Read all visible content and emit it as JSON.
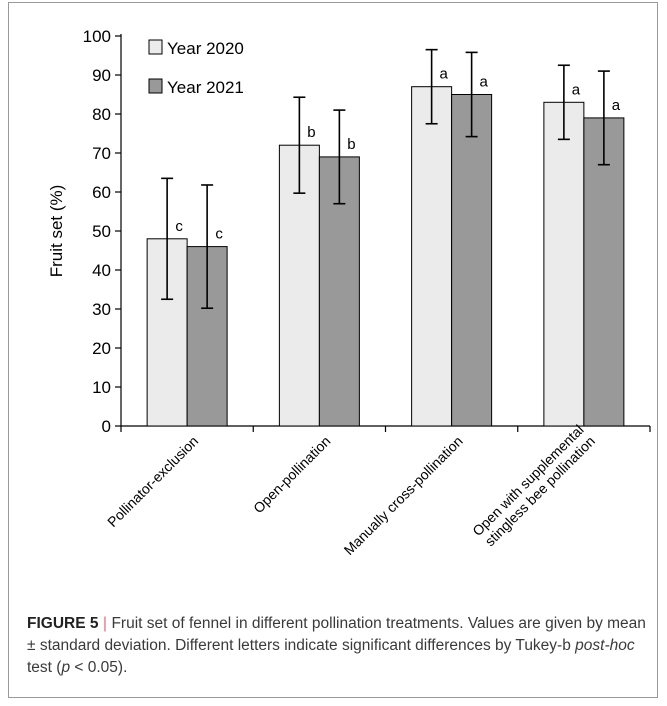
{
  "chart_data": {
    "type": "bar",
    "ylabel": "Fruit set (%)",
    "ylim": [
      0,
      100
    ],
    "yticks": [
      0,
      10,
      20,
      30,
      40,
      50,
      60,
      70,
      80,
      90,
      100
    ],
    "categories": [
      [
        "Pollinator-exclusion"
      ],
      [
        "Open-pollination"
      ],
      [
        "Manually cross-pollination"
      ],
      [
        "Open  with  supplemental",
        "stingless bee pollination"
      ]
    ],
    "legend": {
      "placement": "top-left"
    },
    "series": [
      {
        "name": "Year 2020",
        "color": "#ebebeb",
        "values": [
          48,
          72,
          87,
          83
        ],
        "errors": [
          15.5,
          12.3,
          9.5,
          9.5
        ],
        "letters": [
          "c",
          "b",
          "a",
          "a"
        ]
      },
      {
        "name": "Year 2021",
        "color": "#999999",
        "values": [
          46,
          69,
          85,
          79
        ],
        "errors": [
          15.8,
          12,
          10.8,
          12
        ],
        "letters": [
          "c",
          "b",
          "a",
          "a"
        ]
      }
    ]
  },
  "caption": {
    "label": "FIGURE 5",
    "sep": " | ",
    "text1": "Fruit set of fennel in different pollination treatments. Values are given by mean ± standard deviation. Different letters indicate significant differences by Tukey-b ",
    "italic1": "post-hoc",
    "text2": " test (",
    "italic2": "p",
    "text3": " < 0.05)."
  }
}
